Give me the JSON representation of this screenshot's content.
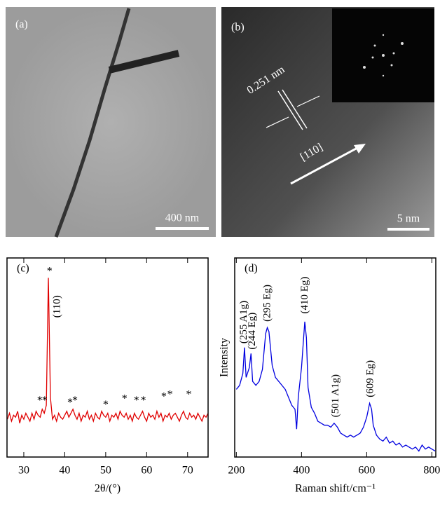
{
  "panels": {
    "a": {
      "label": "(a)",
      "scale_bar": "400 nm"
    },
    "b": {
      "label": "(b)",
      "spacing": "0.251 nm",
      "direction": "[110]",
      "scale_bar": "5 nm"
    }
  },
  "chart_data": [
    {
      "type": "line",
      "panel_label": "(c)",
      "x_label": "2θ/(°)",
      "xlim": [
        25.9,
        75
      ],
      "xticks": [
        30,
        40,
        50,
        60,
        70
      ],
      "ylim": [
        0,
        100
      ],
      "x": [
        26,
        26.5,
        27,
        27.5,
        28,
        28.5,
        29,
        29.5,
        30,
        30.5,
        31,
        31.5,
        32,
        32.5,
        33,
        33.5,
        34,
        34.5,
        35,
        35.5,
        36,
        36.5,
        37,
        37.5,
        38,
        38.5,
        39,
        39.5,
        40,
        40.5,
        41,
        41.5,
        42,
        42.5,
        43,
        43.5,
        44,
        44.5,
        45,
        45.5,
        46,
        46.5,
        47,
        47.5,
        48,
        48.5,
        49,
        49.5,
        50,
        50.5,
        51,
        51.5,
        52,
        52.5,
        53,
        53.5,
        54,
        54.5,
        55,
        55.5,
        56,
        56.5,
        57,
        57.5,
        58,
        58.5,
        59,
        59.5,
        60,
        60.5,
        61,
        61.5,
        62,
        62.5,
        63,
        63.5,
        64,
        64.5,
        65,
        65.5,
        66,
        66.5,
        67,
        67.5,
        68,
        68.5,
        69,
        69.5,
        70,
        70.5,
        71,
        71.5,
        72,
        72.5,
        73,
        73.5,
        74,
        74.5,
        75
      ],
      "series": [
        {
          "color": "#e00000",
          "values": [
            19,
            22,
            18,
            21,
            20,
            23,
            17,
            21,
            19,
            22,
            20,
            18,
            22,
            19,
            23,
            21,
            20,
            24,
            22,
            26,
            90,
            30,
            19,
            21,
            18,
            22,
            20,
            19,
            21,
            23,
            20,
            22,
            24,
            21,
            19,
            22,
            18,
            21,
            20,
            23,
            19,
            21,
            18,
            22,
            20,
            19,
            23,
            21,
            20,
            22,
            18,
            21,
            20,
            22,
            19,
            23,
            21,
            20,
            22,
            19,
            21,
            18,
            22,
            20,
            19,
            21,
            23,
            20,
            18,
            22,
            20,
            21,
            19,
            23,
            20,
            22,
            18,
            21,
            20,
            22,
            19,
            21,
            22,
            20,
            18,
            21,
            23,
            20,
            19,
            22,
            20,
            21,
            19,
            22,
            20,
            18,
            21,
            20,
            22
          ]
        }
      ],
      "annotations": [
        {
          "text": "(110)",
          "x": 38.2,
          "y": 70
        }
      ],
      "markers": [
        {
          "text": "*",
          "x": 36.3,
          "y": 93
        },
        {
          "text": "*",
          "x": 33.9,
          "y": 28
        },
        {
          "text": "*",
          "x": 35.1,
          "y": 28
        },
        {
          "text": "*",
          "x": 41.3,
          "y": 27
        },
        {
          "text": "*",
          "x": 42.5,
          "y": 28
        },
        {
          "text": "*",
          "x": 50.0,
          "y": 26
        },
        {
          "text": "*",
          "x": 54.6,
          "y": 29
        },
        {
          "text": "*",
          "x": 57.5,
          "y": 28
        },
        {
          "text": "*",
          "x": 59.2,
          "y": 28
        },
        {
          "text": "*",
          "x": 64.2,
          "y": 30
        },
        {
          "text": "*",
          "x": 65.7,
          "y": 31
        },
        {
          "text": "*",
          "x": 70.3,
          "y": 31
        }
      ]
    },
    {
      "type": "line",
      "panel_label": "(d)",
      "x_label": "Raman shift/cm⁻¹",
      "y_label": "Intensity",
      "xlim": [
        195,
        812
      ],
      "xticks": [
        200,
        400,
        600,
        800
      ],
      "ylim": [
        0,
        100
      ],
      "x": [
        200,
        210,
        220,
        225,
        230,
        240,
        245,
        250,
        260,
        270,
        280,
        290,
        295,
        300,
        310,
        320,
        330,
        340,
        350,
        360,
        370,
        380,
        385,
        390,
        400,
        410,
        415,
        420,
        430,
        440,
        450,
        460,
        470,
        480,
        490,
        500,
        510,
        520,
        530,
        540,
        550,
        560,
        570,
        580,
        590,
        600,
        609,
        615,
        620,
        630,
        640,
        650,
        660,
        670,
        680,
        690,
        700,
        710,
        720,
        730,
        740,
        750,
        760,
        770,
        780,
        790,
        800,
        810
      ],
      "series": [
        {
          "color": "#0000e0",
          "values": [
            34,
            36,
            42,
            55,
            40,
            45,
            52,
            38,
            36,
            38,
            44,
            62,
            65,
            63,
            46,
            40,
            38,
            36,
            34,
            30,
            26,
            24,
            14,
            30,
            45,
            68,
            60,
            35,
            25,
            22,
            18,
            17,
            16,
            16,
            15,
            17,
            15,
            12,
            11,
            10,
            11,
            10,
            11,
            12,
            15,
            20,
            27,
            24,
            16,
            11,
            9,
            8,
            10,
            7,
            8,
            6,
            7,
            5,
            6,
            5,
            4,
            5,
            3,
            6,
            4,
            5,
            4,
            3
          ]
        }
      ],
      "annotations": [
        {
          "text": "(255 A1g)",
          "x": 224,
          "y": 57
        },
        {
          "text": "(244 Eg)",
          "x": 250,
          "y": 54
        },
        {
          "text": "(295 Eg)",
          "x": 296,
          "y": 68
        },
        {
          "text": "(410 Eg)",
          "x": 411,
          "y": 72
        },
        {
          "text": "(501 A1g)",
          "x": 506,
          "y": 20
        },
        {
          "text": "(609 Eg)",
          "x": 612,
          "y": 30
        }
      ]
    }
  ]
}
